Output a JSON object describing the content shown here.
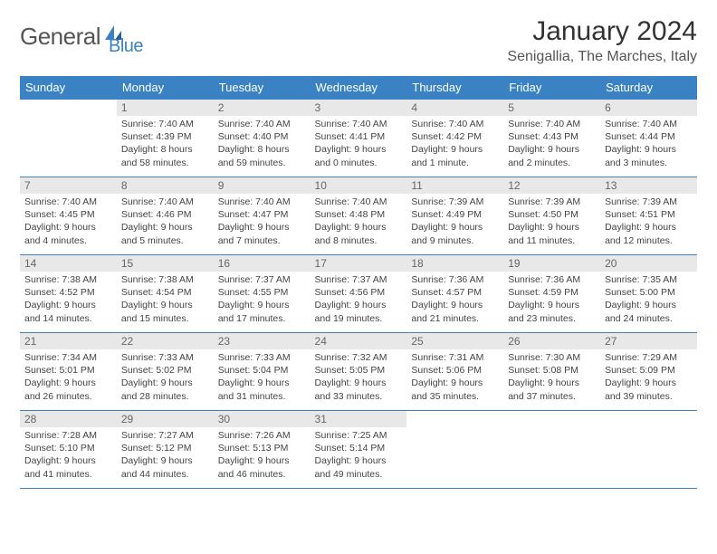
{
  "brand": {
    "part1": "General",
    "part2": "Blue"
  },
  "title": "January 2024",
  "location": "Senigallia, The Marches, Italy",
  "colors": {
    "accent": "#3b82c4",
    "header_bg": "#3b82c4",
    "daynum_bg": "#e8e8e8",
    "text": "#333333"
  },
  "dayHeaders": [
    "Sunday",
    "Monday",
    "Tuesday",
    "Wednesday",
    "Thursday",
    "Friday",
    "Saturday"
  ],
  "weeks": [
    [
      {
        "n": "",
        "sunrise": "",
        "sunset": "",
        "daylight": "",
        "empty": true
      },
      {
        "n": "1",
        "sunrise": "Sunrise: 7:40 AM",
        "sunset": "Sunset: 4:39 PM",
        "daylight": "Daylight: 8 hours and 58 minutes."
      },
      {
        "n": "2",
        "sunrise": "Sunrise: 7:40 AM",
        "sunset": "Sunset: 4:40 PM",
        "daylight": "Daylight: 8 hours and 59 minutes."
      },
      {
        "n": "3",
        "sunrise": "Sunrise: 7:40 AM",
        "sunset": "Sunset: 4:41 PM",
        "daylight": "Daylight: 9 hours and 0 minutes."
      },
      {
        "n": "4",
        "sunrise": "Sunrise: 7:40 AM",
        "sunset": "Sunset: 4:42 PM",
        "daylight": "Daylight: 9 hours and 1 minute."
      },
      {
        "n": "5",
        "sunrise": "Sunrise: 7:40 AM",
        "sunset": "Sunset: 4:43 PM",
        "daylight": "Daylight: 9 hours and 2 minutes."
      },
      {
        "n": "6",
        "sunrise": "Sunrise: 7:40 AM",
        "sunset": "Sunset: 4:44 PM",
        "daylight": "Daylight: 9 hours and 3 minutes."
      }
    ],
    [
      {
        "n": "7",
        "sunrise": "Sunrise: 7:40 AM",
        "sunset": "Sunset: 4:45 PM",
        "daylight": "Daylight: 9 hours and 4 minutes."
      },
      {
        "n": "8",
        "sunrise": "Sunrise: 7:40 AM",
        "sunset": "Sunset: 4:46 PM",
        "daylight": "Daylight: 9 hours and 5 minutes."
      },
      {
        "n": "9",
        "sunrise": "Sunrise: 7:40 AM",
        "sunset": "Sunset: 4:47 PM",
        "daylight": "Daylight: 9 hours and 7 minutes."
      },
      {
        "n": "10",
        "sunrise": "Sunrise: 7:40 AM",
        "sunset": "Sunset: 4:48 PM",
        "daylight": "Daylight: 9 hours and 8 minutes."
      },
      {
        "n": "11",
        "sunrise": "Sunrise: 7:39 AM",
        "sunset": "Sunset: 4:49 PM",
        "daylight": "Daylight: 9 hours and 9 minutes."
      },
      {
        "n": "12",
        "sunrise": "Sunrise: 7:39 AM",
        "sunset": "Sunset: 4:50 PM",
        "daylight": "Daylight: 9 hours and 11 minutes."
      },
      {
        "n": "13",
        "sunrise": "Sunrise: 7:39 AM",
        "sunset": "Sunset: 4:51 PM",
        "daylight": "Daylight: 9 hours and 12 minutes."
      }
    ],
    [
      {
        "n": "14",
        "sunrise": "Sunrise: 7:38 AM",
        "sunset": "Sunset: 4:52 PM",
        "daylight": "Daylight: 9 hours and 14 minutes."
      },
      {
        "n": "15",
        "sunrise": "Sunrise: 7:38 AM",
        "sunset": "Sunset: 4:54 PM",
        "daylight": "Daylight: 9 hours and 15 minutes."
      },
      {
        "n": "16",
        "sunrise": "Sunrise: 7:37 AM",
        "sunset": "Sunset: 4:55 PM",
        "daylight": "Daylight: 9 hours and 17 minutes."
      },
      {
        "n": "17",
        "sunrise": "Sunrise: 7:37 AM",
        "sunset": "Sunset: 4:56 PM",
        "daylight": "Daylight: 9 hours and 19 minutes."
      },
      {
        "n": "18",
        "sunrise": "Sunrise: 7:36 AM",
        "sunset": "Sunset: 4:57 PM",
        "daylight": "Daylight: 9 hours and 21 minutes."
      },
      {
        "n": "19",
        "sunrise": "Sunrise: 7:36 AM",
        "sunset": "Sunset: 4:59 PM",
        "daylight": "Daylight: 9 hours and 23 minutes."
      },
      {
        "n": "20",
        "sunrise": "Sunrise: 7:35 AM",
        "sunset": "Sunset: 5:00 PM",
        "daylight": "Daylight: 9 hours and 24 minutes."
      }
    ],
    [
      {
        "n": "21",
        "sunrise": "Sunrise: 7:34 AM",
        "sunset": "Sunset: 5:01 PM",
        "daylight": "Daylight: 9 hours and 26 minutes."
      },
      {
        "n": "22",
        "sunrise": "Sunrise: 7:33 AM",
        "sunset": "Sunset: 5:02 PM",
        "daylight": "Daylight: 9 hours and 28 minutes."
      },
      {
        "n": "23",
        "sunrise": "Sunrise: 7:33 AM",
        "sunset": "Sunset: 5:04 PM",
        "daylight": "Daylight: 9 hours and 31 minutes."
      },
      {
        "n": "24",
        "sunrise": "Sunrise: 7:32 AM",
        "sunset": "Sunset: 5:05 PM",
        "daylight": "Daylight: 9 hours and 33 minutes."
      },
      {
        "n": "25",
        "sunrise": "Sunrise: 7:31 AM",
        "sunset": "Sunset: 5:06 PM",
        "daylight": "Daylight: 9 hours and 35 minutes."
      },
      {
        "n": "26",
        "sunrise": "Sunrise: 7:30 AM",
        "sunset": "Sunset: 5:08 PM",
        "daylight": "Daylight: 9 hours and 37 minutes."
      },
      {
        "n": "27",
        "sunrise": "Sunrise: 7:29 AM",
        "sunset": "Sunset: 5:09 PM",
        "daylight": "Daylight: 9 hours and 39 minutes."
      }
    ],
    [
      {
        "n": "28",
        "sunrise": "Sunrise: 7:28 AM",
        "sunset": "Sunset: 5:10 PM",
        "daylight": "Daylight: 9 hours and 41 minutes."
      },
      {
        "n": "29",
        "sunrise": "Sunrise: 7:27 AM",
        "sunset": "Sunset: 5:12 PM",
        "daylight": "Daylight: 9 hours and 44 minutes."
      },
      {
        "n": "30",
        "sunrise": "Sunrise: 7:26 AM",
        "sunset": "Sunset: 5:13 PM",
        "daylight": "Daylight: 9 hours and 46 minutes."
      },
      {
        "n": "31",
        "sunrise": "Sunrise: 7:25 AM",
        "sunset": "Sunset: 5:14 PM",
        "daylight": "Daylight: 9 hours and 49 minutes."
      },
      {
        "n": "",
        "sunrise": "",
        "sunset": "",
        "daylight": "",
        "empty": true
      },
      {
        "n": "",
        "sunrise": "",
        "sunset": "",
        "daylight": "",
        "empty": true
      },
      {
        "n": "",
        "sunrise": "",
        "sunset": "",
        "daylight": "",
        "empty": true
      }
    ]
  ]
}
